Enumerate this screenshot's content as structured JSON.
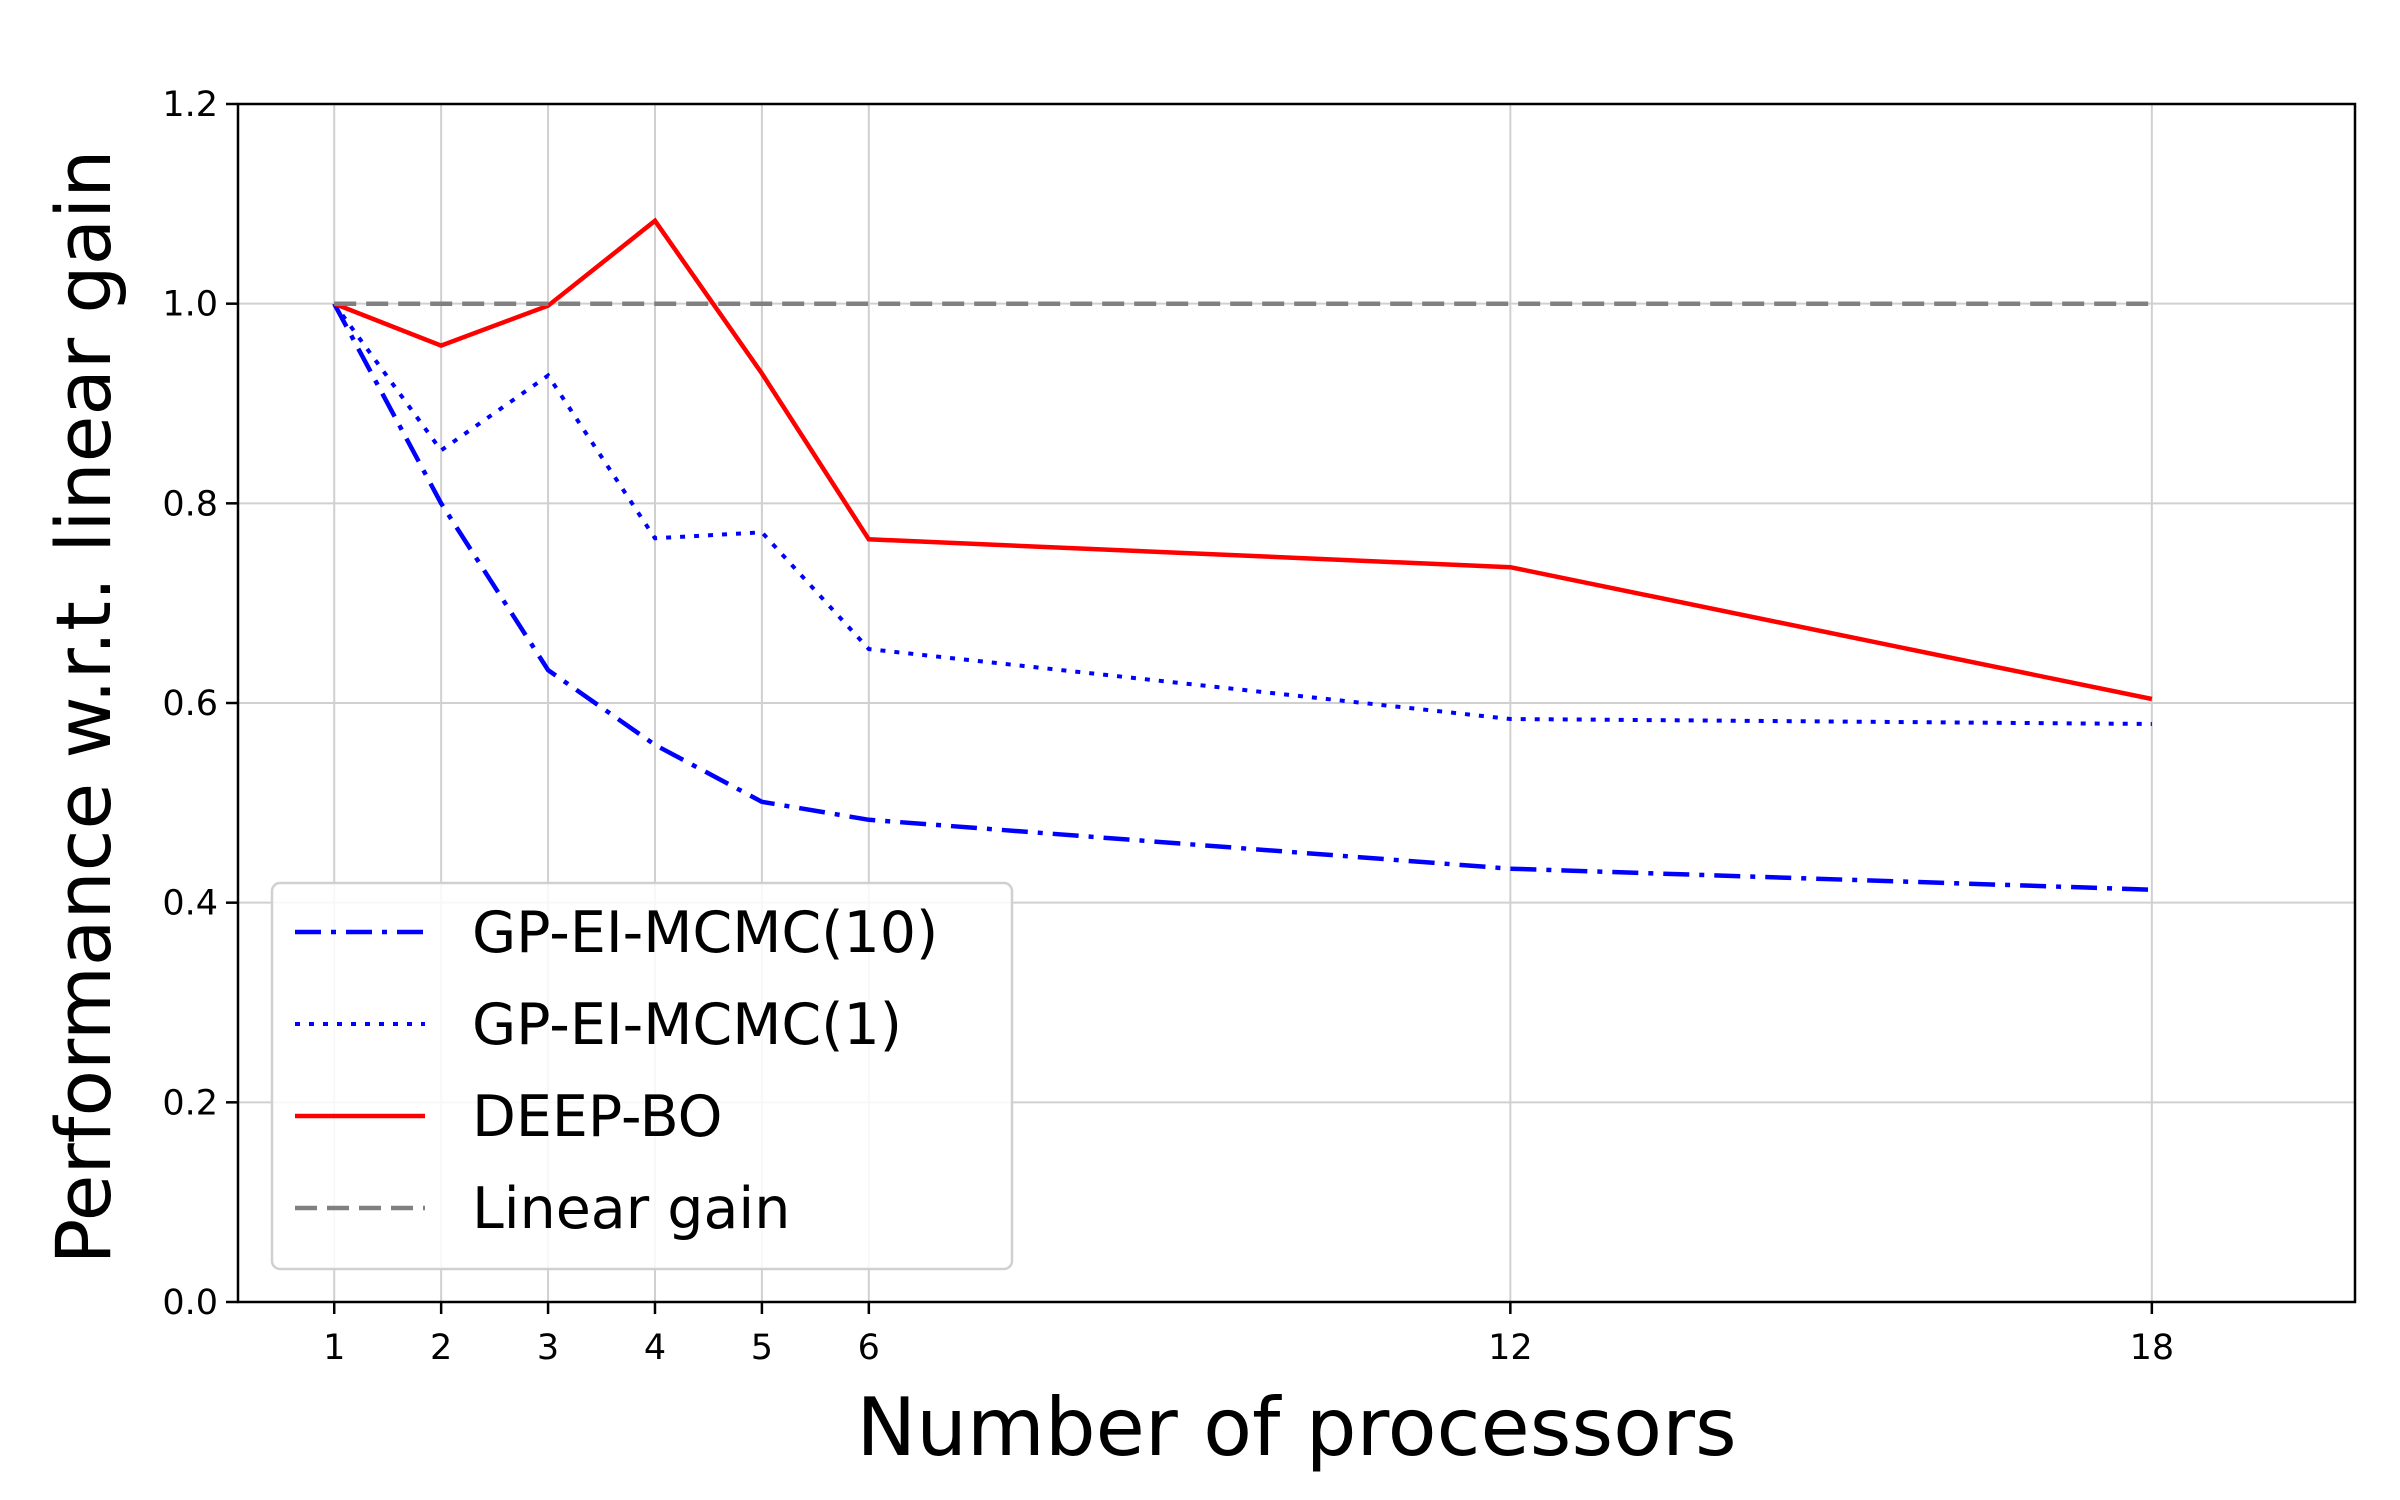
{
  "chart_data": {
    "type": "line",
    "title": "",
    "xlabel": "Number of processors",
    "ylabel": "Performance w.r.t. linear gain",
    "x": [
      1,
      2,
      3,
      4,
      5,
      6,
      12,
      18
    ],
    "xticks": [
      "1",
      "2",
      "3",
      "4",
      "5",
      "6",
      "12",
      "18"
    ],
    "yticks": [
      "0.0",
      "0.2",
      "0.4",
      "0.6",
      "0.8",
      "1.0",
      "1.2"
    ],
    "xlim": [
      0.1,
      19.9
    ],
    "ylim": [
      0.0,
      1.2
    ],
    "grid": true,
    "legend_position": "lower-left",
    "series": [
      {
        "name": "GP-EI-MCMC(10)",
        "color": "#0000ff",
        "style": "dashdot",
        "values": [
          1.0,
          0.8,
          0.633,
          0.558,
          0.501,
          0.483,
          0.434,
          0.413
        ]
      },
      {
        "name": "GP-EI-MCMC(1)",
        "color": "#0000ff",
        "style": "dotted",
        "values": [
          1.0,
          0.853,
          0.928,
          0.765,
          0.771,
          0.654,
          0.584,
          0.579
        ]
      },
      {
        "name": "DEEP-BO",
        "color": "#ff0000",
        "style": "solid",
        "values": [
          1.0,
          0.958,
          0.998,
          1.083,
          0.93,
          0.764,
          0.736,
          0.604
        ]
      },
      {
        "name": "Linear gain",
        "color": "#808080",
        "style": "dashed",
        "values": [
          1.0,
          1.0,
          1.0,
          1.0,
          1.0,
          1.0,
          1.0,
          1.0
        ]
      }
    ]
  }
}
